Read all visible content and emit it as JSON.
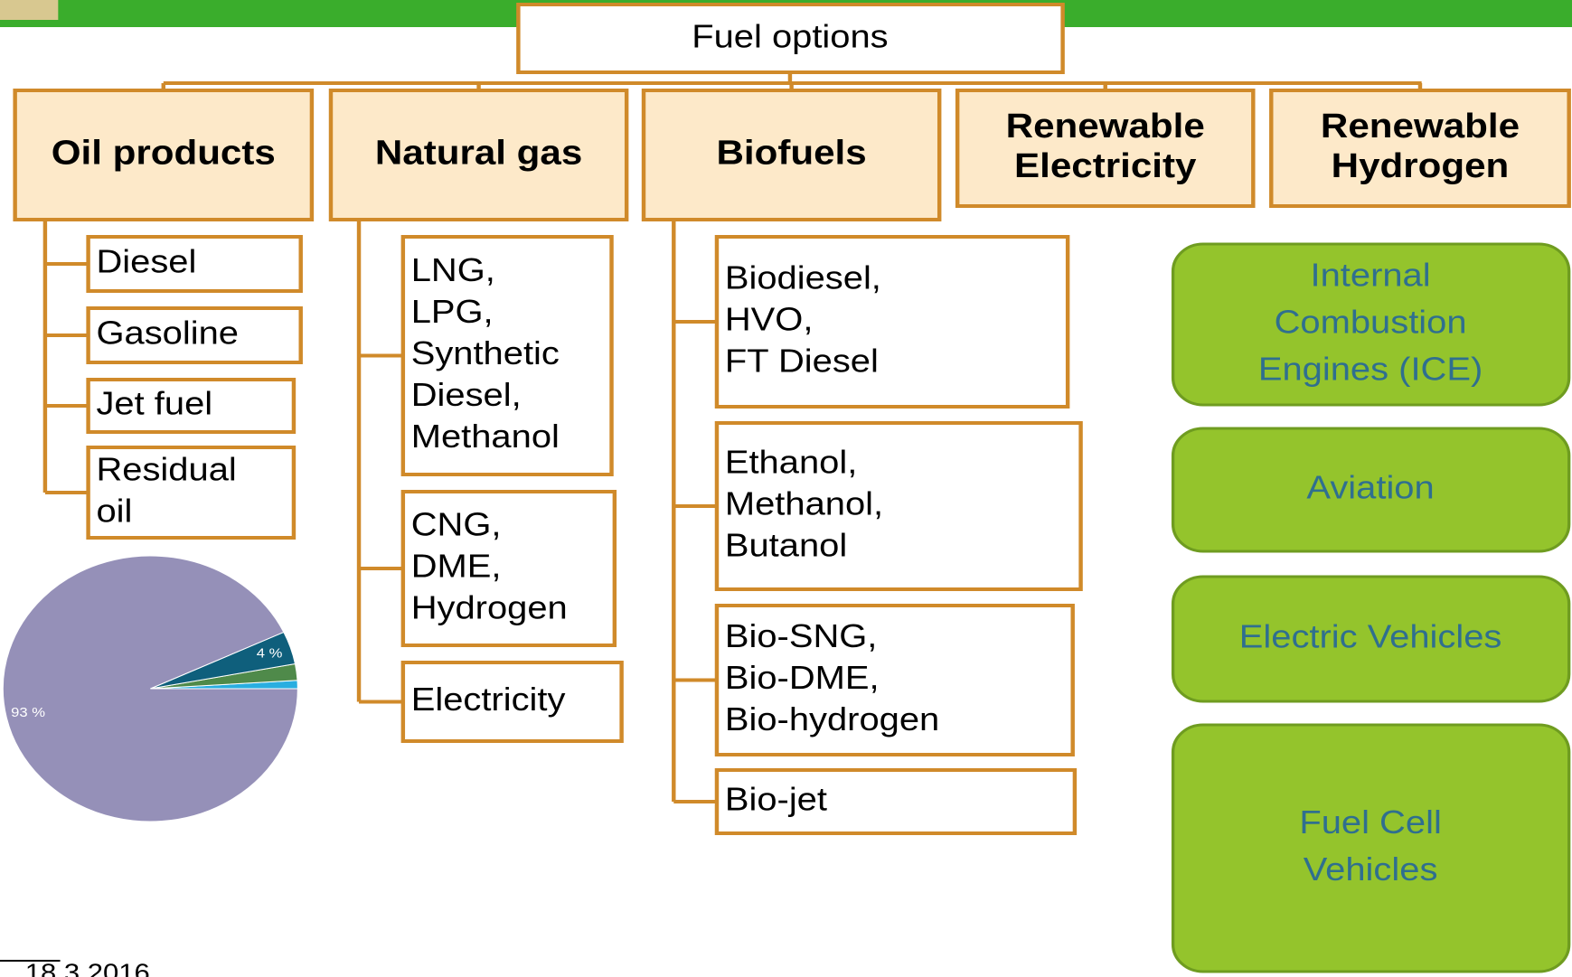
{
  "root": {
    "label": "Fuel options"
  },
  "categories": [
    {
      "lines": [
        "Oil products"
      ],
      "items": [
        {
          "lines": [
            "Diesel"
          ]
        },
        {
          "lines": [
            "Gasoline"
          ]
        },
        {
          "lines": [
            "Jet fuel"
          ]
        },
        {
          "lines": [
            "Residual",
            "oil"
          ]
        }
      ]
    },
    {
      "lines": [
        "Natural gas"
      ],
      "items": [
        {
          "lines": [
            "LNG,",
            "LPG,",
            "Synthetic",
            "Diesel,",
            "Methanol"
          ]
        },
        {
          "lines": [
            "CNG,",
            "DME,",
            "Hydrogen"
          ]
        },
        {
          "lines": [
            "Electricity"
          ]
        }
      ]
    },
    {
      "lines": [
        "Biofuels"
      ],
      "items": [
        {
          "lines": [
            "Biodiesel,",
            "HVO,",
            "FT Diesel"
          ]
        },
        {
          "lines": [
            "Ethanol,",
            "Methanol,",
            "Butanol"
          ]
        },
        {
          "lines": [
            "Bio-SNG,",
            "Bio-DME,",
            "Bio-hydrogen"
          ]
        },
        {
          "lines": [
            "Bio-jet"
          ]
        }
      ]
    },
    {
      "lines": [
        "Renewable",
        "Electricity"
      ],
      "items": []
    },
    {
      "lines": [
        "Renewable",
        "Hydrogen"
      ],
      "items": []
    }
  ],
  "applications": [
    {
      "lines": [
        "Internal",
        "Combustion",
        "Engines (ICE)"
      ]
    },
    {
      "lines": [
        "Aviation"
      ]
    },
    {
      "lines": [
        "Electric Vehicles"
      ]
    },
    {
      "lines": [
        "Fuel Cell",
        "Vehicles"
      ]
    }
  ],
  "chart_data": {
    "type": "pie",
    "categories": [
      null,
      null,
      null,
      null
    ],
    "values": [
      1,
      2,
      4,
      93
    ],
    "value_labels": [
      null,
      null,
      "4 %",
      "93 %"
    ],
    "colors": [
      "#29aee0",
      "#4f8a4a",
      "#0f5f7c",
      "#9590b8"
    ]
  },
  "footer": {
    "date": "18.3.2016"
  }
}
